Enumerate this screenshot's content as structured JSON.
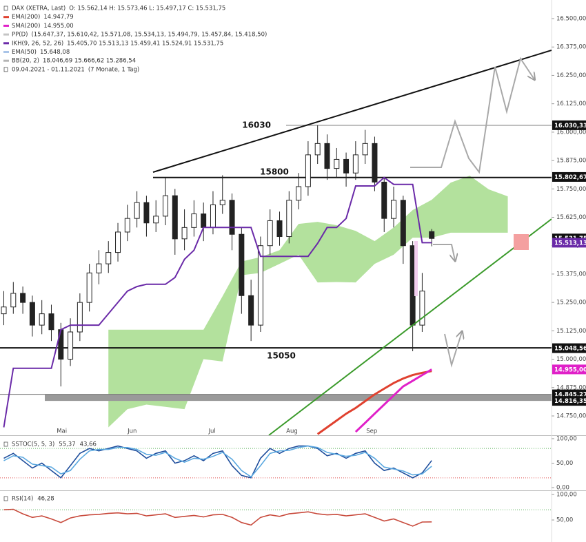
{
  "chart_data": [
    {
      "type": "candlestick",
      "title": "DAX (XETRA, Last)",
      "quote": "O: 15.562,14   H: 15.573,46   L: 15.497,17   C: 15.531,75",
      "period": "09.04.2021 - 01.11.2021",
      "period_note": "(7 Monate, 1 Tag)",
      "open": [
        15200,
        15230,
        15290,
        15250,
        15150,
        15200,
        15130,
        15000,
        15120,
        15250,
        15380,
        15420,
        15470,
        15560,
        15620,
        15690,
        15600,
        15630,
        15720,
        15530,
        15580,
        15640,
        15580,
        15680,
        15700,
        15550,
        15280,
        15150,
        15500,
        15610,
        15540,
        15700,
        15760,
        15900,
        15950,
        15840,
        15880,
        15820,
        15900,
        15950,
        15780,
        15620,
        15700,
        15500,
        15150,
        15562.14
      ],
      "high": [
        15300,
        15340,
        15320,
        15280,
        15260,
        15240,
        15160,
        15180,
        15290,
        15420,
        15480,
        15520,
        15600,
        15680,
        15740,
        15720,
        15700,
        15800,
        15750,
        15660,
        15700,
        15690,
        15740,
        15810,
        15730,
        15580,
        15350,
        15540,
        15660,
        15650,
        15740,
        15820,
        15960,
        16030,
        15990,
        15930,
        15910,
        15960,
        16010,
        15980,
        15800,
        15760,
        15720,
        15520,
        15380,
        15573.46
      ],
      "low": [
        15150,
        15200,
        15200,
        15100,
        15110,
        15080,
        14880,
        14970,
        15080,
        15210,
        15330,
        15380,
        15430,
        15520,
        15580,
        15540,
        15560,
        15590,
        15460,
        15480,
        15540,
        15520,
        15550,
        15640,
        15480,
        15200,
        15080,
        15120,
        15460,
        15500,
        15510,
        15660,
        15720,
        15860,
        15790,
        15800,
        15760,
        15790,
        15860,
        15740,
        15560,
        15580,
        15420,
        15035,
        15120,
        15497.17
      ],
      "close": [
        15230,
        15290,
        15250,
        15150,
        15200,
        15130,
        15000,
        15120,
        15250,
        15380,
        15420,
        15470,
        15560,
        15620,
        15690,
        15600,
        15630,
        15720,
        15530,
        15580,
        15640,
        15580,
        15680,
        15700,
        15550,
        15280,
        15150,
        15500,
        15610,
        15540,
        15700,
        15760,
        15900,
        15950,
        15840,
        15880,
        15820,
        15900,
        15950,
        15780,
        15620,
        15700,
        15500,
        15150,
        15300,
        15531.75
      ],
      "xlim": [
        -0.4,
        57.6
      ],
      "xticks": [
        {
          "value": 6.1,
          "label": "Mai"
        },
        {
          "value": 13.5,
          "label": "Jun"
        },
        {
          "value": 21.9,
          "label": "Jul"
        },
        {
          "value": 30.3,
          "label": "Aug"
        },
        {
          "value": 38.7,
          "label": "Sep"
        }
      ],
      "ylim": [
        14665,
        16582
      ],
      "yticks": [
        {
          "value": 14750,
          "label": "14.750,00"
        },
        {
          "value": 14875,
          "label": "14.875,00"
        },
        {
          "value": 15000,
          "label": "15.000,00"
        },
        {
          "value": 15125,
          "label": "15.125,00"
        },
        {
          "value": 15250,
          "label": "15.250,00"
        },
        {
          "value": 15375,
          "label": "15.375,00"
        },
        {
          "value": 15500,
          "label": "15.500,00"
        },
        {
          "value": 15625,
          "label": "15.625,00"
        },
        {
          "value": 15750,
          "label": "15.750,00"
        },
        {
          "value": 15875,
          "label": "15.875,00"
        },
        {
          "value": 16000,
          "label": "16.000,00"
        },
        {
          "value": 16125,
          "label": "16.125,00"
        },
        {
          "value": 16250,
          "label": "16.250,00"
        },
        {
          "value": 16375,
          "label": "16.375,00"
        },
        {
          "value": 16500,
          "label": "16.500,00"
        }
      ],
      "series": [
        {
          "name": "EMA(200)",
          "last_label": "14.947,79",
          "color": "#e0412f",
          "values": [
            null,
            null,
            null,
            null,
            null,
            null,
            null,
            null,
            null,
            null,
            null,
            null,
            null,
            null,
            null,
            null,
            null,
            null,
            null,
            null,
            null,
            null,
            null,
            null,
            null,
            null,
            null,
            null,
            null,
            null,
            null,
            null,
            null,
            14670,
            14700,
            14730,
            14760,
            14785,
            14815,
            14845,
            14870,
            14895,
            14915,
            14930,
            14940,
            14947.79
          ]
        },
        {
          "name": "SMA(200)",
          "last_label": "14.955,00",
          "color": "#e020c8",
          "values": [
            null,
            null,
            null,
            null,
            null,
            null,
            null,
            null,
            null,
            null,
            null,
            null,
            null,
            null,
            null,
            null,
            null,
            null,
            null,
            null,
            null,
            null,
            null,
            null,
            null,
            null,
            null,
            null,
            null,
            null,
            null,
            null,
            null,
            null,
            null,
            null,
            null,
            14680,
            14720,
            14760,
            14800,
            14840,
            14880,
            14905,
            14930,
            14955
          ]
        },
        {
          "name": "IKH(9, 26, 52, 26)",
          "last_label": "15.405,70   15.513,13   15.459,41   15.524,91   15.531,75",
          "color": "#6a2aa8",
          "values": [
            14700,
            14960,
            14960,
            14960,
            14960,
            14960,
            15130,
            15150,
            15150,
            15150,
            15150,
            15200,
            15250,
            15300,
            15320,
            15330,
            15330,
            15330,
            15360,
            15440,
            15480,
            15580,
            15580,
            15580,
            15580,
            15580,
            15580,
            15453,
            15453,
            15453,
            15453,
            15453,
            15453,
            15510,
            15580,
            15580,
            15620,
            15763,
            15763,
            15763,
            15800,
            15770,
            15770,
            15770,
            15513,
            15513.13
          ]
        }
      ],
      "indicators": [
        {
          "name": "PP(D)",
          "value": "(15.647,37, 15.610,42, 15.571,08, 15.534,13, 15.494,79, 15.457,84, 15.418,50)",
          "color": "#c4c4c4"
        },
        {
          "name": "EMA(50)",
          "value": "15.648,08",
          "color": "#a9c4e8"
        },
        {
          "name": "BB(20, 2)",
          "value": "18.046,69   15.666,62   15.286,54",
          "color": "#b4b4b4"
        }
      ],
      "cloud": {
        "color": "#a6dc8c",
        "x": [
          11,
          13,
          15,
          17,
          19,
          21,
          23,
          25,
          27,
          29,
          31,
          33,
          35,
          37,
          39,
          41,
          43,
          45,
          47,
          49,
          51,
          53
        ],
        "upper": [
          15130,
          15130,
          15130,
          15130,
          15130,
          15130,
          15277,
          15430,
          15450,
          15480,
          15596,
          15605,
          15590,
          15565,
          15520,
          15580,
          15657,
          15702,
          15778,
          15808,
          15748,
          15717
        ],
        "lower": [
          14700,
          14780,
          14800,
          14790,
          14780,
          15000,
          14990,
          15370,
          15380,
          15420,
          15460,
          15338,
          15340,
          15338,
          15420,
          15460,
          15535,
          15535,
          15557,
          15557,
          15557,
          15557
        ]
      },
      "levels": [
        {
          "value": 16030,
          "label": "16030",
          "color": "#999999"
        },
        {
          "value": 15800,
          "label": "15800",
          "color": "#111111"
        },
        {
          "value": 15050,
          "label": "15050",
          "color": "#111111"
        }
      ],
      "price_badges": [
        {
          "value": 16030.33,
          "label": "16.030,33",
          "color": "#111111"
        },
        {
          "value": 15802.67,
          "label": "15.802,67",
          "color": "#111111"
        },
        {
          "value": 15531.75,
          "label": "15.531,75",
          "color": "#111111"
        },
        {
          "value": 15513.13,
          "label": "15.513,13",
          "color": "#6a2aa8"
        },
        {
          "value": 15048.56,
          "label": "15.048,56",
          "color": "#111111"
        },
        {
          "value": 14955,
          "label": "14.955,00",
          "color": "#e020c8"
        },
        {
          "value": 14845.27,
          "label": "14.845,27",
          "color": "#111111"
        },
        {
          "value": 14816.35,
          "label": "14.816,35",
          "color": "#111111"
        }
      ]
    },
    {
      "type": "line",
      "title": "SSTOC(5, 5, 3)",
      "xlim": [
        -0.4,
        57.6
      ],
      "ylim": [
        -5.6,
        105.6
      ],
      "yticks": [
        {
          "value": 100,
          "label": "100,00"
        },
        {
          "value": 50,
          "label": "50,00"
        },
        {
          "value": 0,
          "label": "0,00"
        }
      ],
      "guides": [
        {
          "value": 80,
          "color": "#5fb35f"
        },
        {
          "value": 20,
          "color": "#e05050"
        }
      ],
      "series": [
        {
          "last_label": "55,37",
          "color": "#1f4e9c",
          "values": [
            60,
            70,
            55,
            40,
            50,
            35,
            20,
            45,
            70,
            80,
            75,
            80,
            85,
            80,
            75,
            60,
            70,
            75,
            50,
            55,
            65,
            55,
            70,
            75,
            45,
            25,
            20,
            60,
            80,
            70,
            80,
            85,
            85,
            80,
            65,
            70,
            60,
            70,
            75,
            50,
            35,
            40,
            30,
            20,
            30,
            55.37
          ]
        },
        {
          "last_label": "43,66",
          "color": "#5aa8e0",
          "values": [
            55,
            65,
            62,
            48,
            45,
            42,
            28,
            35,
            58,
            75,
            78,
            78,
            82,
            82,
            78,
            68,
            66,
            72,
            60,
            52,
            60,
            58,
            64,
            72,
            58,
            35,
            22,
            45,
            70,
            75,
            76,
            82,
            85,
            82,
            72,
            68,
            64,
            66,
            72,
            60,
            42,
            38,
            34,
            26,
            28,
            43.66
          ]
        }
      ]
    },
    {
      "type": "line",
      "title": "RSI(14)",
      "xlim": [
        -0.4,
        57.6
      ],
      "ylim": [
        6.8,
        108.1
      ],
      "yticks": [
        {
          "value": 100,
          "label": "100,00"
        },
        {
          "value": 50,
          "label": "50,00"
        }
      ],
      "guides": [
        {
          "value": 70,
          "color": "#5fb35f"
        }
      ],
      "series": [
        {
          "last_label": "46,28",
          "color": "#c84a3c",
          "values": [
            70,
            71,
            62,
            55,
            58,
            52,
            45,
            54,
            58,
            60,
            61,
            63,
            64,
            62,
            63,
            58,
            60,
            62,
            55,
            57,
            59,
            56,
            60,
            61,
            55,
            45,
            40,
            55,
            60,
            57,
            62,
            64,
            66,
            62,
            60,
            61,
            58,
            60,
            62,
            55,
            48,
            52,
            45,
            38,
            46,
            46.28
          ]
        }
      ]
    }
  ]
}
